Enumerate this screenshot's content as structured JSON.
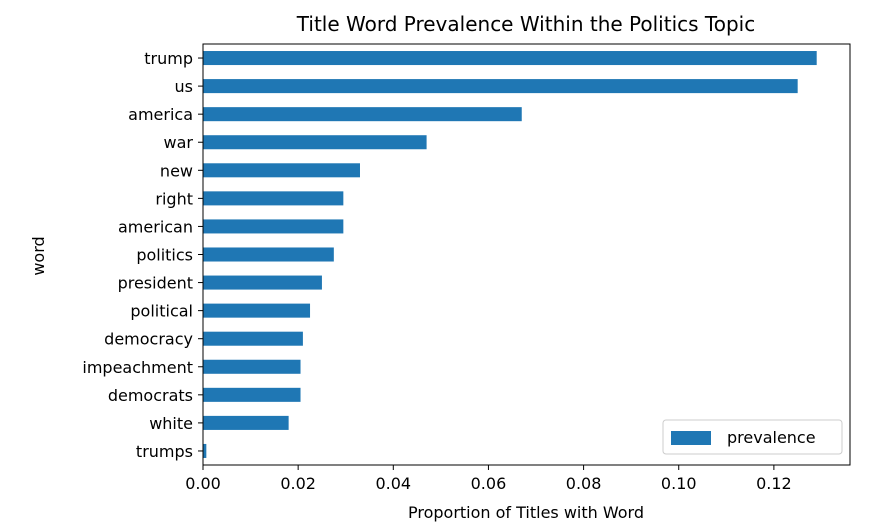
{
  "chart_data": {
    "type": "bar",
    "orientation": "horizontal",
    "title": "Title Word Prevalence Within the Politics Topic",
    "xlabel": "Proportion of Titles with Word",
    "ylabel": "word",
    "categories": [
      "trump",
      "us",
      "america",
      "war",
      "new",
      "right",
      "american",
      "politics",
      "president",
      "political",
      "democracy",
      "impeachment",
      "democrats",
      "white",
      "trumps"
    ],
    "series": [
      {
        "name": "prevalence",
        "values": [
          0.129,
          0.125,
          0.067,
          0.047,
          0.033,
          0.0295,
          0.0295,
          0.0275,
          0.025,
          0.0225,
          0.021,
          0.0205,
          0.0205,
          0.018,
          0.0007
        ],
        "color": "#1f77b4"
      }
    ],
    "xlim": [
      0,
      0.136
    ],
    "xticks": [
      0.0,
      0.02,
      0.04,
      0.06,
      0.08,
      0.1,
      0.12
    ],
    "xtick_labels": [
      "0.00",
      "0.02",
      "0.04",
      "0.06",
      "0.08",
      "0.10",
      "0.12"
    ],
    "grid": false,
    "legend_position": "lower-right"
  }
}
